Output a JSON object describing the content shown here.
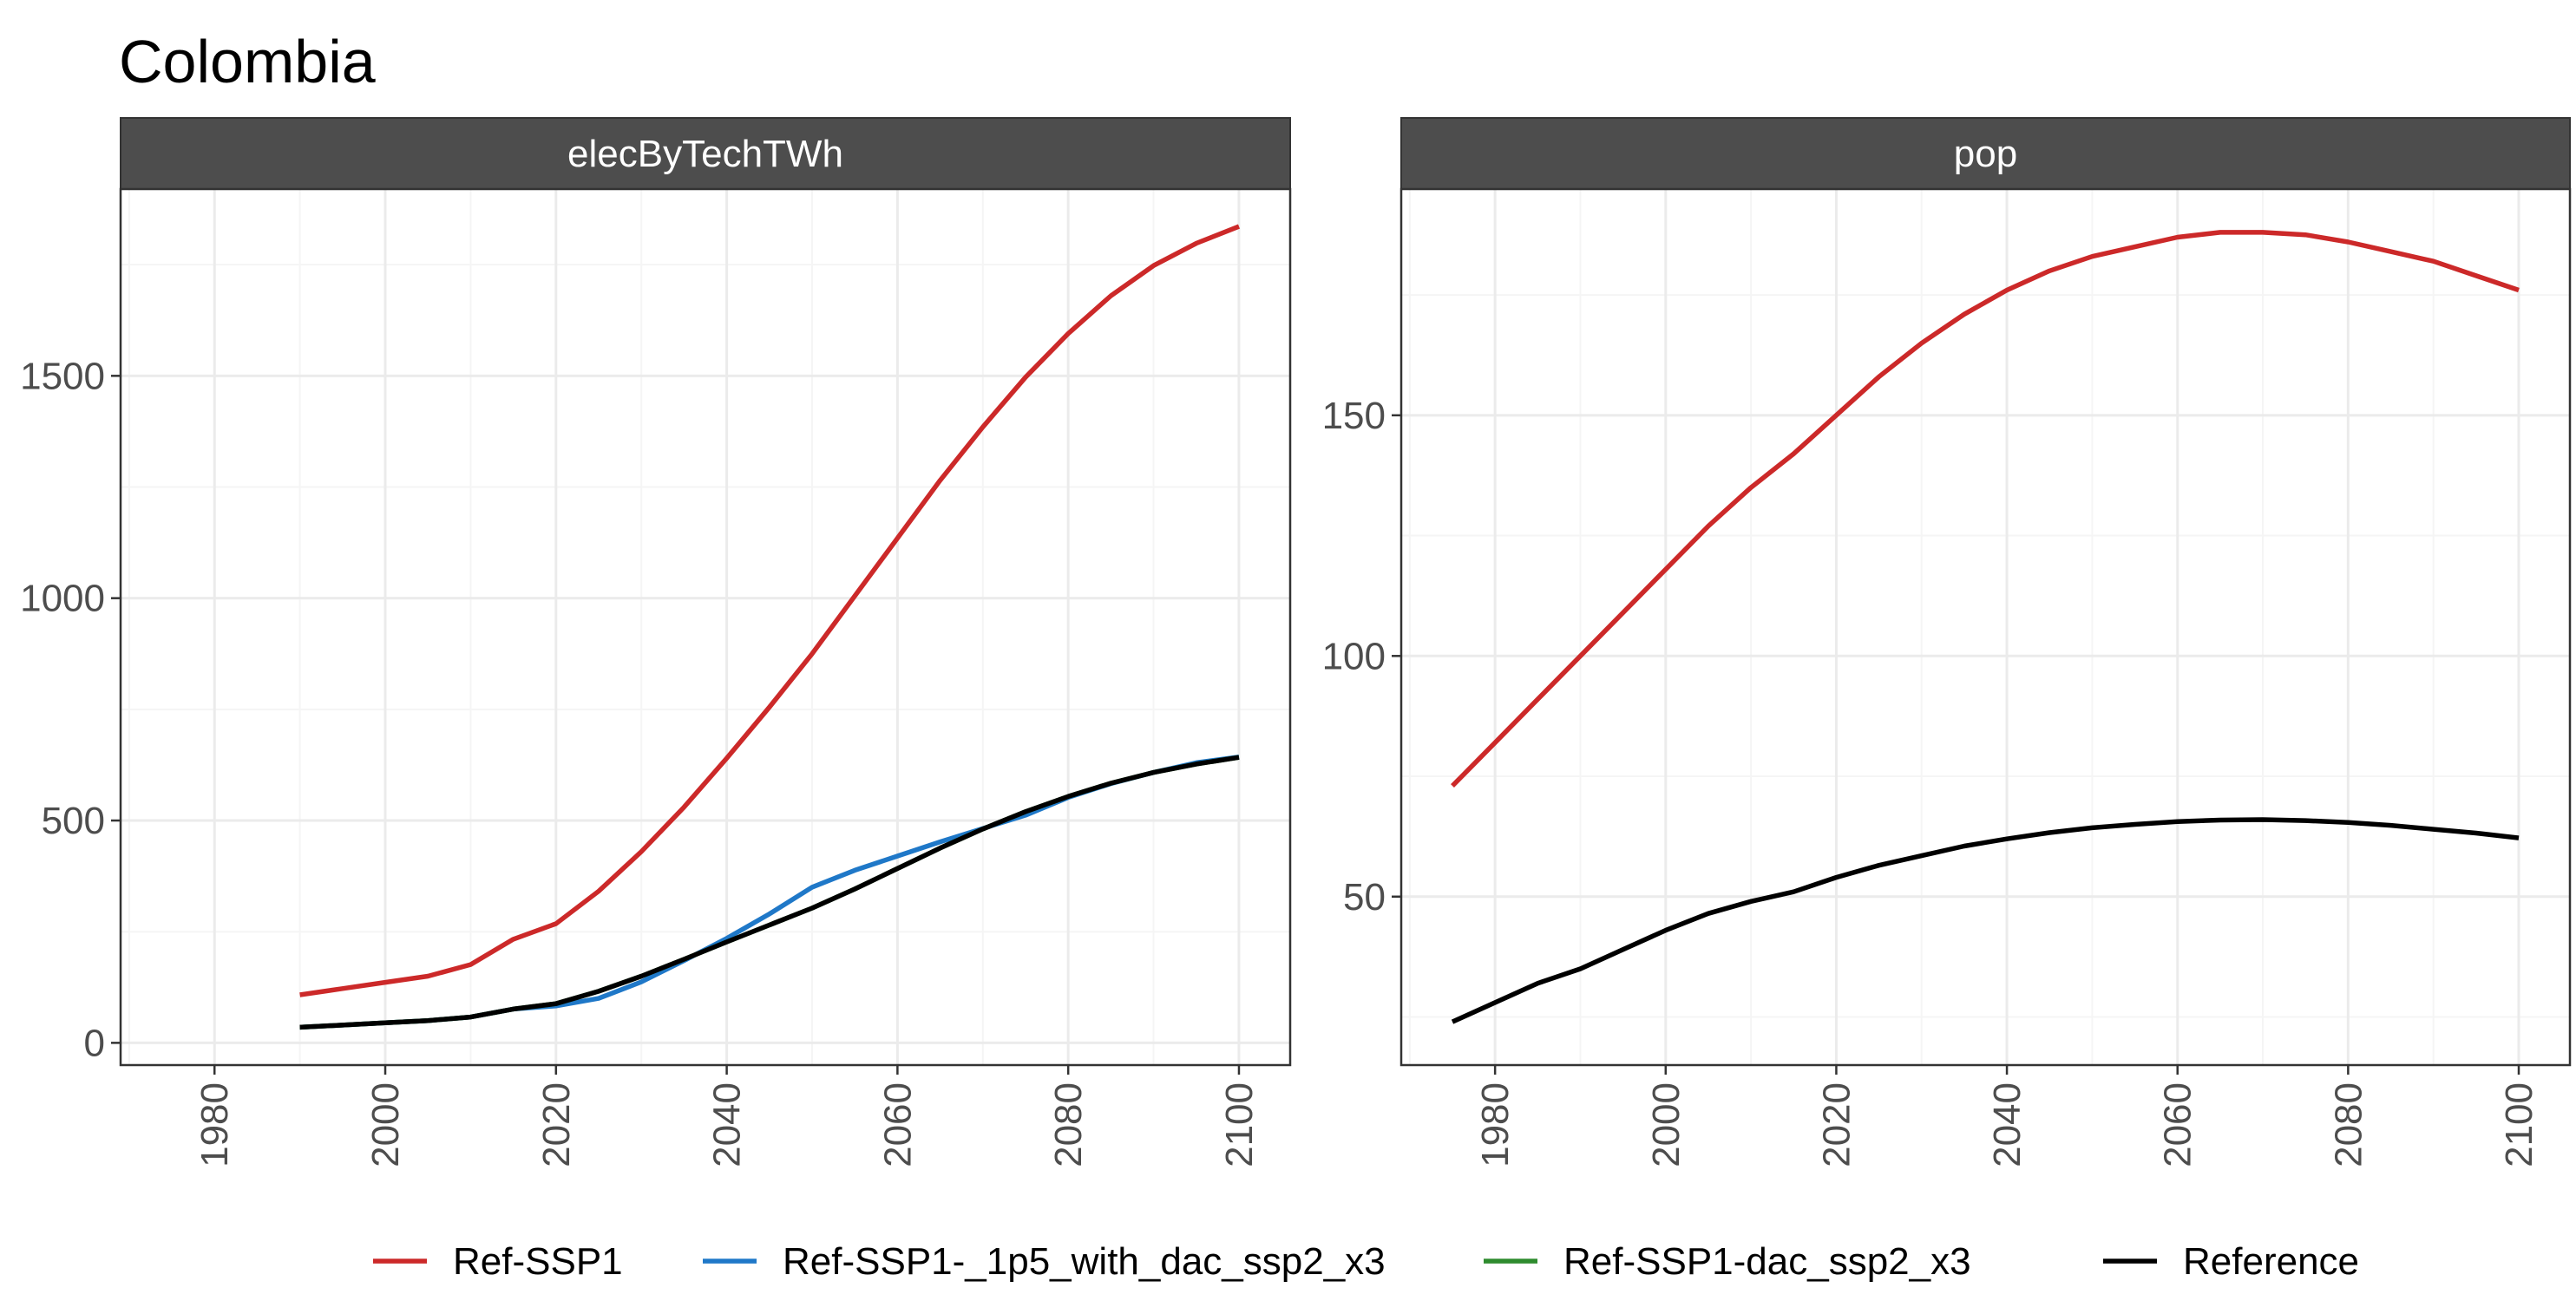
{
  "title": "Colombia",
  "colors": {
    "Ref-SSP1": "#cc2929",
    "Ref-SSP1-_1p5_with_dac_ssp2_x3": "#1f78c8",
    "Ref-SSP1-dac_ssp2_x3": "#2e8b2e",
    "Reference": "#000000",
    "strip": "#4d4d4d",
    "grid_major": "#ebebeb",
    "grid_minor": "#f5f5f5",
    "panel_border": "#333333",
    "tick_text": "#4d4d4d"
  },
  "legend": {
    "position": "bottom",
    "items": [
      {
        "name": "Ref-SSP1",
        "color": "#cc2929"
      },
      {
        "name": "Ref-SSP1-_1p5_with_dac_ssp2_x3",
        "color": "#1f78c8"
      },
      {
        "name": "Ref-SSP1-dac_ssp2_x3",
        "color": "#2e8b2e"
      },
      {
        "name": "Reference",
        "color": "#000000"
      }
    ]
  },
  "chart_data": [
    {
      "type": "line",
      "facet": "elecByTechTWh",
      "xlim": [
        1969,
        2106
      ],
      "ylim": [
        -50,
        1920
      ],
      "x_ticks": [
        1980,
        2000,
        2020,
        2040,
        2060,
        2080,
        2100
      ],
      "y_ticks": [
        0,
        500,
        1000,
        1500
      ],
      "y_tick_labels": [
        "0",
        "500",
        "1000",
        "1500"
      ],
      "grid": true,
      "series": [
        {
          "name": "Ref-SSP1",
          "x": [
            1990,
            1995,
            2000,
            2005,
            2010,
            2015,
            2020,
            2025,
            2030,
            2035,
            2040,
            2045,
            2050,
            2055,
            2060,
            2065,
            2070,
            2075,
            2080,
            2085,
            2090,
            2095,
            2100
          ],
          "y": [
            108,
            122,
            136,
            150,
            176,
            233,
            268,
            341,
            430,
            530,
            640,
            755,
            875,
            1005,
            1135,
            1265,
            1385,
            1497,
            1595,
            1680,
            1748,
            1798,
            1836
          ]
        },
        {
          "name": "Ref-SSP1-_1p5_with_dac_ssp2_x3",
          "x": [
            1990,
            1995,
            2000,
            2005,
            2010,
            2015,
            2020,
            2025,
            2030,
            2035,
            2040,
            2045,
            2050,
            2055,
            2060,
            2065,
            2070,
            2075,
            2080,
            2085,
            2090,
            2095,
            2100
          ],
          "y": [
            35,
            40,
            45,
            50,
            58,
            76,
            83,
            100,
            137,
            185,
            235,
            290,
            350,
            388,
            420,
            452,
            482,
            512,
            552,
            583,
            608,
            630,
            643
          ]
        },
        {
          "name": "Ref-SSP1-dac_ssp2_x3",
          "x": [
            1990,
            1995,
            2000,
            2005,
            2010,
            2015,
            2020,
            2025,
            2030,
            2035,
            2040,
            2045,
            2050,
            2055,
            2060,
            2065,
            2070,
            2075,
            2080,
            2085,
            2090,
            2095,
            2100
          ],
          "y": [
            35,
            40,
            45,
            50,
            58,
            76,
            88,
            116,
            150,
            188,
            227,
            265,
            303,
            346,
            392,
            438,
            481,
            520,
            554,
            584,
            608,
            627,
            642
          ]
        },
        {
          "name": "Reference",
          "x": [
            1990,
            1995,
            2000,
            2005,
            2010,
            2015,
            2020,
            2025,
            2030,
            2035,
            2040,
            2045,
            2050,
            2055,
            2060,
            2065,
            2070,
            2075,
            2080,
            2085,
            2090,
            2095,
            2100
          ],
          "y": [
            35,
            40,
            45,
            50,
            58,
            76,
            88,
            116,
            150,
            188,
            227,
            265,
            303,
            346,
            392,
            438,
            481,
            520,
            554,
            584,
            608,
            627,
            642
          ]
        }
      ]
    },
    {
      "type": "line",
      "facet": "pop",
      "xlim": [
        1969,
        2106
      ],
      "ylim": [
        15,
        197
      ],
      "x_ticks": [
        1980,
        2000,
        2020,
        2040,
        2060,
        2080,
        2100
      ],
      "y_ticks": [
        50,
        100,
        150
      ],
      "y_tick_labels": [
        "50",
        "100",
        "150"
      ],
      "grid": true,
      "series": [
        {
          "name": "Ref-SSP1",
          "x": [
            1975,
            1980,
            1985,
            1990,
            1995,
            2000,
            2005,
            2010,
            2015,
            2020,
            2025,
            2030,
            2035,
            2040,
            2045,
            2050,
            2055,
            2060,
            2065,
            2070,
            2075,
            2080,
            2085,
            2090,
            2095,
            2100
          ],
          "y": [
            73,
            82,
            91,
            100,
            109,
            118,
            127,
            135,
            142,
            150,
            158,
            165,
            171,
            176,
            180,
            183,
            185,
            187,
            188,
            188,
            187.5,
            186,
            184,
            182,
            179,
            176
          ]
        },
        {
          "name": "Reference",
          "x": [
            1975,
            1980,
            1985,
            1990,
            1995,
            2000,
            2005,
            2010,
            2015,
            2020,
            2025,
            2030,
            2035,
            2040,
            2045,
            2050,
            2055,
            2060,
            2065,
            2070,
            2075,
            2080,
            2085,
            2090,
            2095,
            2100
          ],
          "y": [
            24,
            28,
            32,
            35,
            39,
            43,
            46.5,
            49,
            51,
            54,
            56.5,
            58.5,
            60.5,
            62,
            63.3,
            64.3,
            65,
            65.6,
            65.9,
            66,
            65.8,
            65.4,
            64.8,
            64,
            63.2,
            62.2
          ]
        }
      ]
    }
  ]
}
